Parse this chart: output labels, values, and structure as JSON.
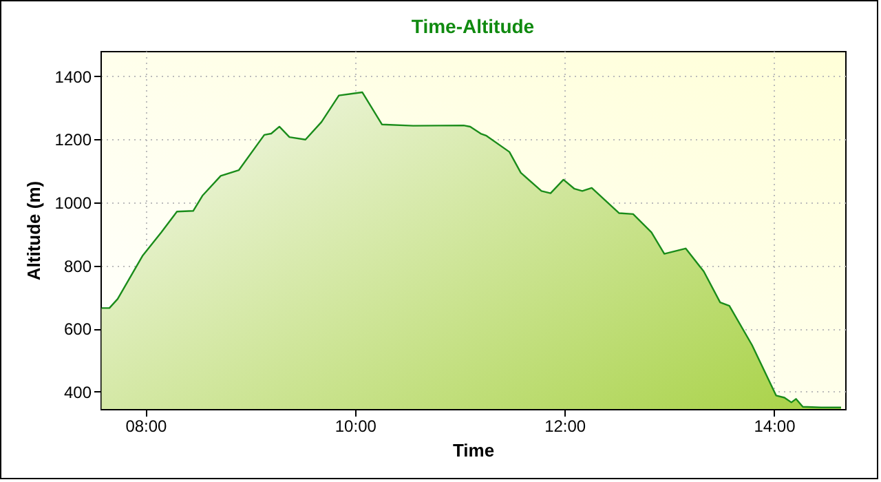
{
  "chart_data": {
    "type": "area",
    "title": "Time-Altitude",
    "xlabel": "Time",
    "ylabel": "Altitude (m)",
    "x": [
      7.58,
      7.655,
      7.734,
      7.974,
      8.15,
      8.3,
      8.455,
      8.543,
      8.718,
      8.89,
      9.134,
      9.2,
      9.278,
      9.374,
      9.527,
      9.68,
      9.846,
      10.07,
      10.257,
      10.555,
      11.037,
      11.1,
      11.2,
      11.255,
      11.474,
      11.583,
      11.78,
      11.867,
      11.99,
      12.095,
      12.17,
      12.26,
      12.52,
      12.655,
      12.83,
      12.953,
      13.157,
      13.33,
      13.486,
      13.574,
      13.79,
      14.02,
      14.1,
      14.166,
      14.21,
      14.275,
      14.45,
      14.64
    ],
    "series": [
      {
        "color": "#1a8c1a",
        "values": [
          665,
          665,
          694,
          832,
          905,
          971,
          973,
          1021,
          1084,
          1102,
          1214,
          1218,
          1240,
          1207,
          1199,
          1255,
          1339,
          1349,
          1247,
          1243,
          1244,
          1240,
          1218,
          1211,
          1160,
          1094,
          1036,
          1029,
          1072,
          1043,
          1036,
          1046,
          966,
          963,
          905,
          837,
          854,
          781,
          683,
          672,
          548,
          388,
          381,
          366,
          377,
          352,
          350,
          350
        ]
      }
    ],
    "xlim": [
      7.57,
      14.68
    ],
    "ylim": [
      345,
      1480
    ],
    "xticks": [
      {
        "value": 8,
        "label": "08:00"
      },
      {
        "value": 10,
        "label": "10:00"
      },
      {
        "value": 12,
        "label": "12:00"
      },
      {
        "value": 14,
        "label": "14:00"
      }
    ],
    "yticks": [
      400,
      600,
      800,
      1000,
      1200,
      1400
    ],
    "grid": true,
    "marker": "none",
    "line_style": "solid"
  }
}
